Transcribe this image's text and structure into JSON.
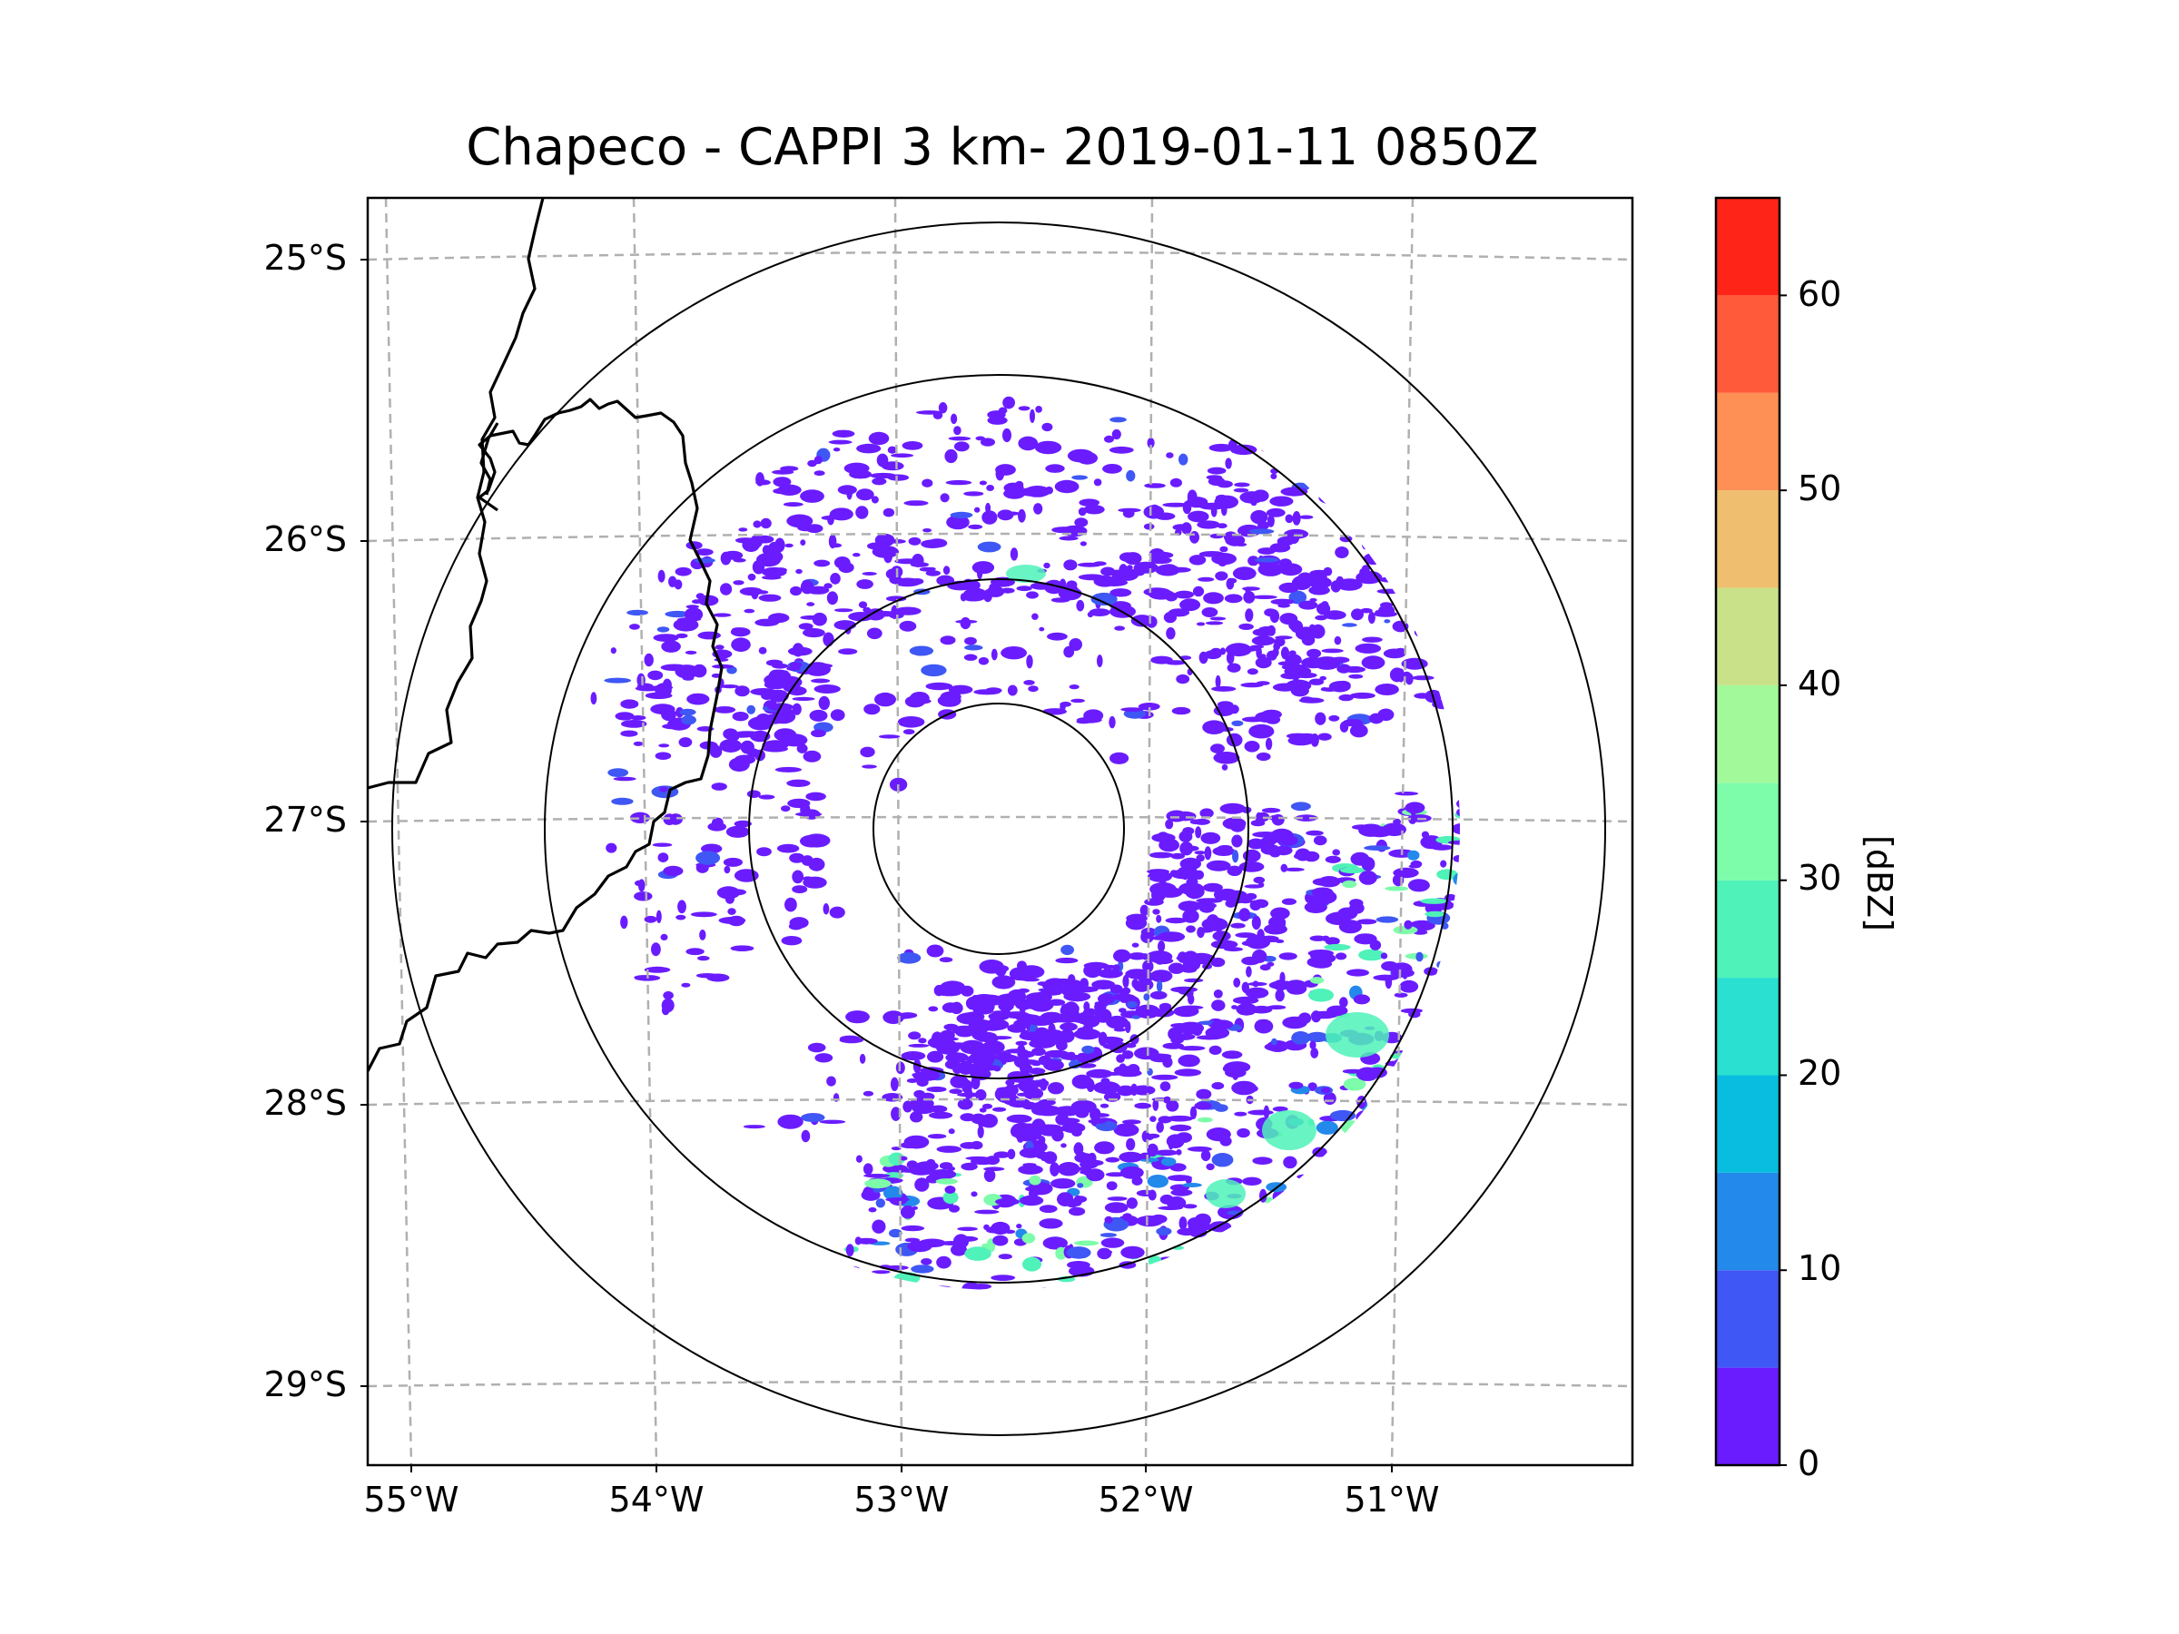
{
  "title": "Chapeco - CAPPI 3 km- 2019-01-11 0850Z",
  "map": {
    "latitude_labels": [
      "25°S",
      "26°S",
      "27°S",
      "28°S",
      "29°S"
    ],
    "longitude_labels": [
      "55°W",
      "54°W",
      "53°W",
      "52°W",
      "51°W"
    ],
    "radar_site": "Chapeco",
    "product": "CAPPI 3 km",
    "range_rings": 4
  },
  "colorbar": {
    "label": "[dBZ]",
    "tick_labels": [
      "0",
      "10",
      "20",
      "30",
      "40",
      "50",
      "60"
    ],
    "bins": [
      0,
      5,
      10,
      15,
      20,
      25,
      30,
      35,
      40,
      45,
      50,
      55,
      60,
      65
    ],
    "colors": [
      "#6a1cff",
      "#3f57f5",
      "#2389ea",
      "#08bde0",
      "#2ae0d0",
      "#4ff2b8",
      "#7dfcaa",
      "#a2f99a",
      "#c9e28a",
      "#efbf6f",
      "#ff9055",
      "#ff5a3a",
      "#ff2418"
    ]
  },
  "echoes": {
    "dominant_color": "#6a1cff",
    "accent_colors": [
      "#3f57f5",
      "#2389ea",
      "#4ff2b8",
      "#7dfcaa"
    ]
  }
}
